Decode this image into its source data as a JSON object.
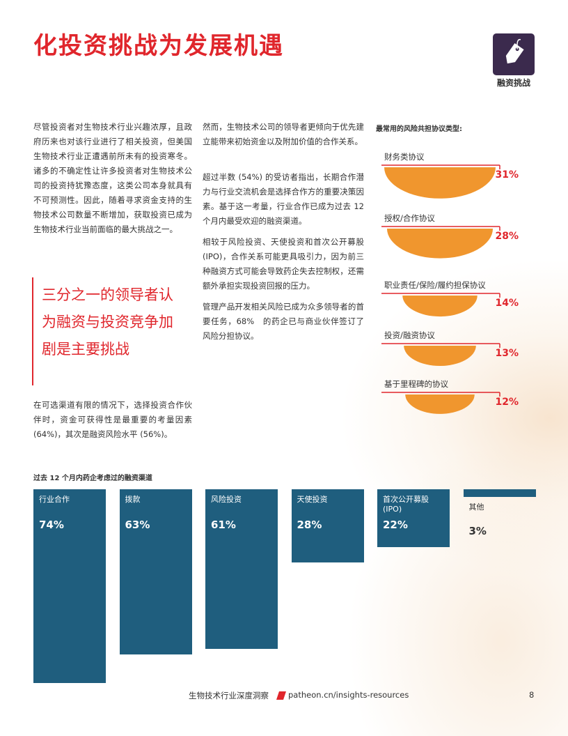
{
  "header": {
    "title": "化投资挑战为发展机遇",
    "badge": "融资挑战"
  },
  "column1": {
    "paragraphs": [
      "尽管投资者对生物技术行业兴趣浓厚，且政府历来也对该行业进行了相关投资，但美国生物技术行业正遭遇前所未有的投资寒冬。诸多的不确定性让许多投资者对生物技术公司的投资持犹豫态度，这类公司本身就具有不可预测性。因此，随着寻求资金支持的生物技术公司数量不断增加，获取投资已成为生物技术行业当前面临的最大挑战之一。",
      "在可选渠道有限的情况下，选择投资合作伙伴时，资金可获得性是最重要的考量因素 (64%)，其次是融资风险水平 (56%)。"
    ],
    "quote": "三分之一的领导者认为融资与投资竞争加剧是主要挑战"
  },
  "column2": {
    "paragraphs": [
      "然而，生物技术公司的领导者更倾向于优先建立能带来初始资金以及附加价值的合作关系。",
      "超过半数 (54%) 的受访者指出，长期合作潜力与行业交流机会是选择合作方的重要决策因素。基于这一考量，行业合作已成为过去 12 个月内最受欢迎的融资渠道。",
      "相较于风险投资、天使投资和首次公开募股 (IPO)，合作关系可能更具吸引力，因为前三种融资方式可能会导致药企失去控制权，还需额外承担实现投资回报的压力。",
      "管理产品开发相关风险已成为众多领导者的首要任务，68%　的药企已与商业伙伴签订了风险分担协议。"
    ]
  },
  "risk_chart": {
    "title": "最常用的风险共担协议类型:",
    "categories": [
      "财务类协议",
      "授权/合作协议",
      "职业责任/保险/履约担保协议",
      "投资/融资协议",
      "基于里程碑的协议"
    ],
    "values": [
      31,
      28,
      14,
      13,
      12
    ],
    "value_labels": [
      "31%",
      "28%",
      "14%",
      "13%",
      "12%"
    ],
    "color": "#f0962e"
  },
  "channel_chart": {
    "title": "过去 12 个月内药企考虑过的融资渠道",
    "categories": [
      "行业合作",
      "拨款",
      "风险投资",
      "天使投资",
      "首次公开募股 (IPO)",
      "其他"
    ],
    "values": [
      74,
      63,
      61,
      28,
      22,
      3
    ],
    "value_labels": [
      "74%",
      "63%",
      "61%",
      "28%",
      "22%",
      "3%"
    ],
    "color": "#1f5e7e"
  },
  "footer": {
    "title": "生物技术行业深度洞察",
    "url": "patheon.cn/insights-resources",
    "page": "8"
  }
}
